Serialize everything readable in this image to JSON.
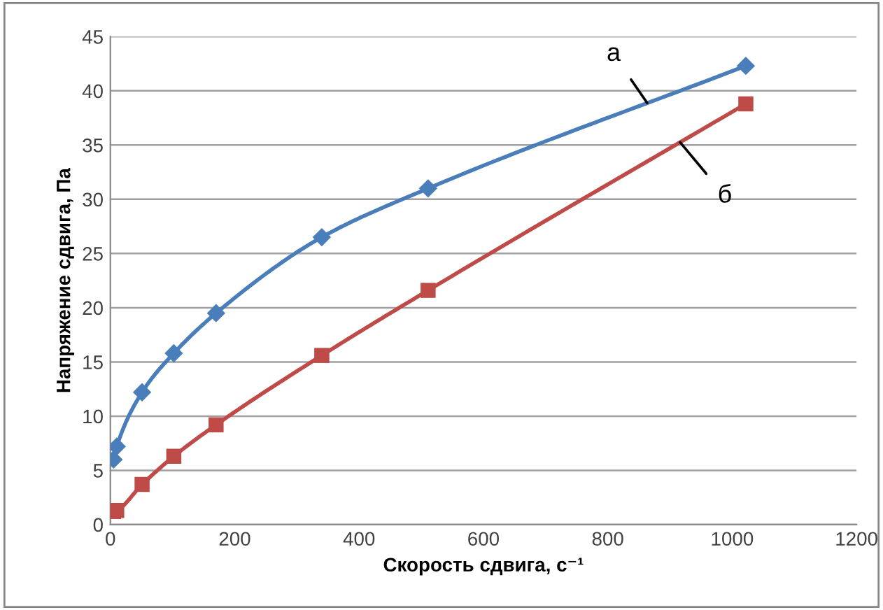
{
  "chart_data": {
    "type": "line",
    "xlabel": "Скорость сдвига, с⁻¹",
    "ylabel": "Напряжение сдвига, Па",
    "x": [
      5.1,
      10.2,
      51,
      102,
      170,
      340,
      511,
      1022
    ],
    "series": [
      {
        "name": "а",
        "color": "#4a7ebb",
        "marker": "diamond",
        "values": [
          6,
          7.2,
          12.2,
          15.8,
          19.5,
          26.5,
          31,
          42.3
        ]
      },
      {
        "name": "б",
        "color": "#be4b48",
        "marker": "square",
        "values": [
          1.2,
          1.3,
          3.7,
          6.3,
          9.2,
          15.6,
          21.6,
          38.8
        ]
      }
    ],
    "xlim": [
      0,
      1200
    ],
    "xticks": [
      0,
      200,
      400,
      600,
      800,
      1000,
      1200
    ],
    "ylim": [
      0,
      45
    ],
    "yticks": [
      0,
      5,
      10,
      15,
      20,
      25,
      30,
      35,
      40,
      45
    ],
    "grid": "y",
    "legend": false
  }
}
